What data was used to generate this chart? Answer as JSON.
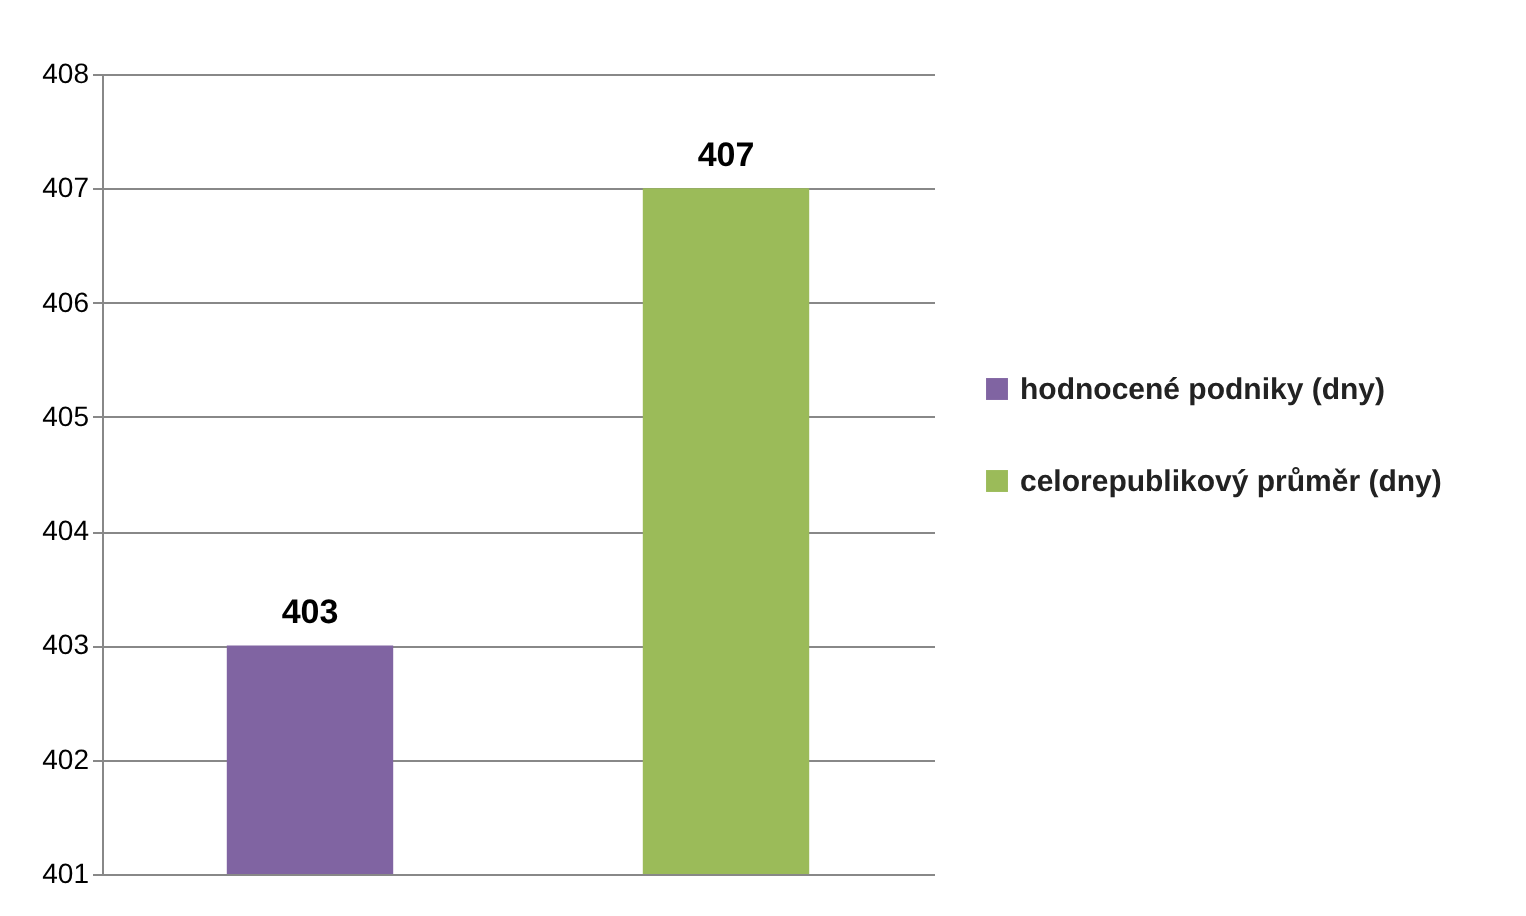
{
  "chart_data": {
    "type": "bar",
    "categories": [
      null,
      null
    ],
    "series": [
      {
        "name": "hodnocené podniky (dny)",
        "color": "#8064a2",
        "values": [
          403,
          null
        ]
      },
      {
        "name": "celorepublikový průměr (dny)",
        "color": "#9bbb59",
        "values": [
          null,
          407
        ]
      }
    ],
    "ylim": [
      401,
      408
    ],
    "yticks": [
      401,
      402,
      403,
      404,
      405,
      406,
      407,
      408
    ],
    "grid": "y",
    "legend": "right",
    "data_labels": true
  }
}
